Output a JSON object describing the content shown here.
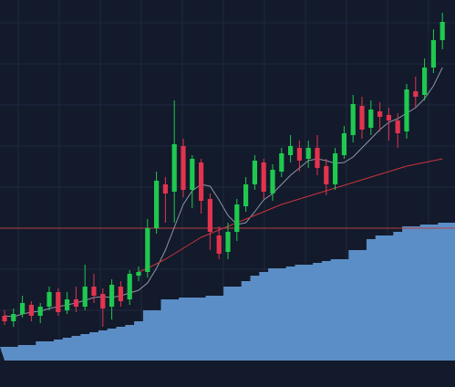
{
  "chart_data": {
    "type": "candlestick",
    "ylim": [
      0,
      424
    ],
    "grid": true,
    "up_color": "#1fc94f",
    "down_color": "#e2344e",
    "open": [
      78,
      72,
      80,
      90,
      78,
      88,
      104,
      84,
      96,
      88,
      110,
      102,
      88,
      110,
      96,
      122,
      126,
      174,
      222,
      214,
      264,
      216,
      246,
      206,
      166,
      148,
      170,
      198,
      222,
      246,
      212,
      236,
      254,
      262,
      250,
      262,
      242,
      222,
      254,
      276,
      308,
      284,
      302,
      298,
      292,
      280,
      324,
      320,
      350,
      380
    ],
    "high": [
      84,
      86,
      100,
      94,
      92,
      110,
      108,
      104,
      110,
      134,
      124,
      108,
      118,
      116,
      128,
      132,
      184,
      236,
      230,
      314,
      272,
      254,
      250,
      212,
      176,
      180,
      206,
      230,
      254,
      250,
      244,
      262,
      276,
      270,
      270,
      276,
      250,
      262,
      286,
      320,
      318,
      314,
      312,
      306,
      300,
      332,
      340,
      360,
      392,
      410
    ],
    "low": [
      68,
      66,
      76,
      72,
      70,
      84,
      78,
      80,
      82,
      84,
      92,
      66,
      74,
      88,
      90,
      116,
      120,
      168,
      180,
      180,
      208,
      196,
      190,
      150,
      140,
      140,
      160,
      192,
      216,
      206,
      204,
      230,
      246,
      236,
      240,
      232,
      210,
      216,
      250,
      268,
      272,
      276,
      280,
      270,
      262,
      272,
      306,
      314,
      344,
      370
    ],
    "close": [
      72,
      80,
      92,
      78,
      88,
      104,
      82,
      96,
      88,
      110,
      100,
      86,
      112,
      94,
      124,
      126,
      174,
      226,
      212,
      266,
      216,
      250,
      204,
      170,
      146,
      170,
      200,
      222,
      248,
      214,
      238,
      256,
      264,
      248,
      262,
      240,
      222,
      256,
      278,
      310,
      282,
      304,
      296,
      292,
      278,
      326,
      318,
      350,
      380,
      400
    ],
    "series": [
      {
        "type": "line",
        "color": "#8e95a6",
        "values": [
          78,
          77,
          80,
          82,
          83,
          86,
          88,
          90,
          92,
          95,
          98,
          99,
          98,
          100,
          103,
          106,
          114,
          130,
          150,
          175,
          200,
          215,
          222,
          220,
          205,
          188,
          178,
          180,
          192,
          205,
          212,
          222,
          232,
          240,
          248,
          250,
          248,
          245,
          246,
          252,
          262,
          272,
          282,
          290,
          294,
          300,
          306,
          316,
          330,
          350
        ]
      },
      {
        "type": "line",
        "color": "#c8353c",
        "values": [
          null,
          null,
          null,
          null,
          null,
          null,
          null,
          null,
          null,
          null,
          null,
          null,
          null,
          null,
          null,
          126,
          130,
          135,
          140,
          146,
          152,
          158,
          164,
          168,
          172,
          176,
          180,
          184,
          188,
          192,
          196,
          200,
          203,
          206,
          209,
          212,
          215,
          218,
          221,
          224,
          227,
          230,
          233,
          236,
          239,
          242,
          244,
          246,
          248,
          250
        ]
      },
      {
        "type": "area",
        "color": "#5b8ec6",
        "values": [
          44,
          44,
          46,
          46,
          50,
          50,
          52,
          54,
          56,
          58,
          60,
          62,
          64,
          66,
          68,
          72,
          84,
          84,
          96,
          96,
          98,
          98,
          98,
          100,
          100,
          110,
          110,
          116,
          122,
          126,
          130,
          130,
          132,
          134,
          134,
          136,
          138,
          140,
          140,
          150,
          150,
          162,
          166,
          166,
          170,
          176,
          176,
          178,
          178,
          180
        ]
      }
    ],
    "hline": {
      "value": 174,
      "color": "#b8404a"
    }
  }
}
